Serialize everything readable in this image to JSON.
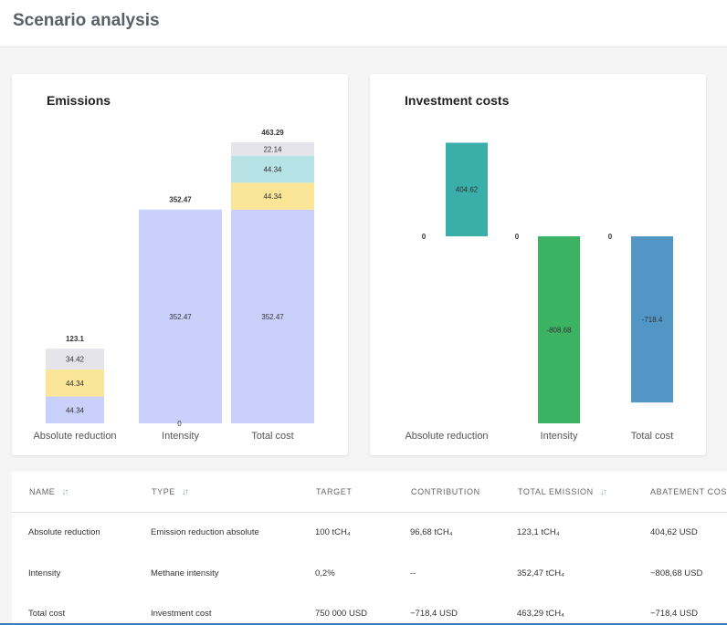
{
  "page": {
    "title": "Scenario analysis"
  },
  "emissions": {
    "title": "Emissions",
    "categories": [
      "Absolute reduction",
      "Intensity",
      "Total cost"
    ],
    "totals": [
      "123.1",
      "352.47",
      "463.29"
    ],
    "zero_label": "0",
    "segments": [
      [
        {
          "value": 44.34,
          "label": "44.34",
          "color": "#c9d1fb"
        },
        {
          "value": 44.34,
          "label": "44.34",
          "color": "#fbe697"
        },
        {
          "value": 34.42,
          "label": "34.42",
          "color": "#e4e4ea"
        }
      ],
      [
        {
          "value": 352.47,
          "label": "352.47",
          "color": "#c9d1fb"
        }
      ],
      [
        {
          "value": 352.47,
          "label": "352.47",
          "color": "#c9d1fb"
        },
        {
          "value": 44.34,
          "label": "44.34",
          "color": "#fbe697"
        },
        {
          "value": 44.34,
          "label": "44.34",
          "color": "#b8e3e6"
        },
        {
          "value": 22.14,
          "label": "22.14",
          "color": "#e4e4ea"
        }
      ]
    ]
  },
  "investment": {
    "title": "Investment costs",
    "categories": [
      "Absolute reduction",
      "Intensity",
      "Total cost"
    ],
    "zero_labels": [
      "0",
      "0",
      "0"
    ],
    "bars": [
      {
        "value": 404.62,
        "label": "404.62",
        "color": "#3aafa9"
      },
      {
        "value": -808.68,
        "label": "-808.68",
        "color": "#3cb263"
      },
      {
        "value": -718.4,
        "label": "-718.4",
        "color": "#5196c4"
      }
    ]
  },
  "chart_data": [
    {
      "type": "bar",
      "title": "Emissions",
      "categories": [
        "Absolute reduction",
        "Intensity",
        "Total cost"
      ],
      "stacked": true,
      "totals": [
        123.1,
        352.47,
        463.29
      ],
      "stacks": [
        [
          44.34,
          44.34,
          34.42
        ],
        [
          352.47
        ],
        [
          352.47,
          44.34,
          44.34,
          22.14
        ]
      ]
    },
    {
      "type": "bar",
      "title": "Investment costs",
      "categories": [
        "Absolute reduction",
        "Intensity",
        "Total cost"
      ],
      "values": [
        404.62,
        -808.68,
        -718.4
      ]
    }
  ],
  "table": {
    "columns": [
      "NAME",
      "TYPE",
      "TARGET",
      "CONTRIBUTION",
      "TOTAL EMISSION",
      "ABATEMENT COST"
    ],
    "sortable": [
      true,
      true,
      false,
      false,
      true,
      false
    ],
    "sort_glyph": "↓↑",
    "rows": [
      [
        "Absolute reduction",
        "Emission reduction absolute",
        "100 tCH₄",
        "96,68 tCH₄",
        "123,1 tCH₄",
        "404,62 USD"
      ],
      [
        "Intensity",
        "Methane intensity",
        "0,2%",
        "--",
        "352,47 tCH₄",
        "−808,68 USD"
      ],
      [
        "Total cost",
        "Investment cost",
        "750 000 USD",
        "−718,4 USD",
        "463,29 tCH₄",
        "−718,4 USD"
      ]
    ]
  }
}
